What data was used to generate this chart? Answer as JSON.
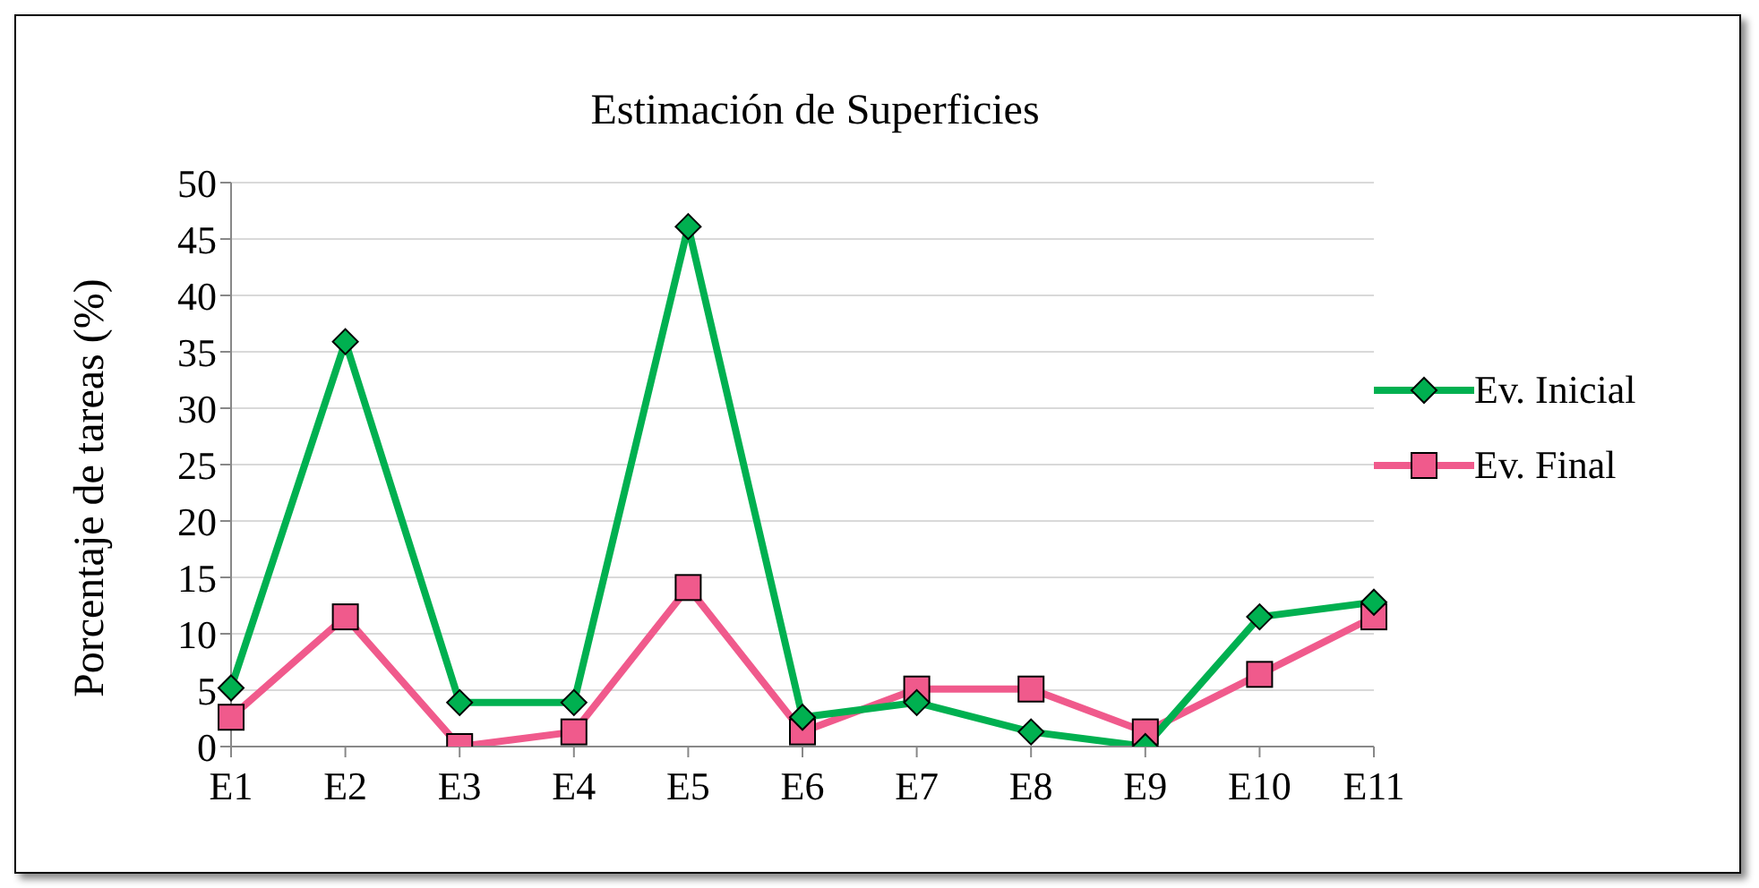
{
  "chart_data": {
    "type": "line",
    "title": "Estimación de Superficies",
    "ylabel": "Porcentaje de tareas (%)",
    "categories": [
      "E1",
      "E2",
      "E3",
      "E4",
      "E5",
      "E6",
      "E7",
      "E8",
      "E9",
      "E10",
      "E11"
    ],
    "series": [
      {
        "name": "Ev. Inicial",
        "color": "#00b050",
        "marker": "diamond",
        "values": [
          5.2,
          35.9,
          3.9,
          3.9,
          46.1,
          2.6,
          3.9,
          1.3,
          0,
          11.5,
          12.8
        ]
      },
      {
        "name": "Ev. Final",
        "color": "#f05a8c",
        "marker": "square",
        "values": [
          2.6,
          11.5,
          0,
          1.3,
          14.1,
          1.3,
          5.1,
          5.1,
          1.3,
          6.4,
          11.5
        ]
      }
    ],
    "ylim": [
      0,
      50
    ],
    "yticks": [
      0,
      5,
      10,
      15,
      20,
      25,
      30,
      35,
      40,
      45,
      50
    ],
    "grid": "y",
    "legend": "right",
    "line_style": "solid"
  }
}
